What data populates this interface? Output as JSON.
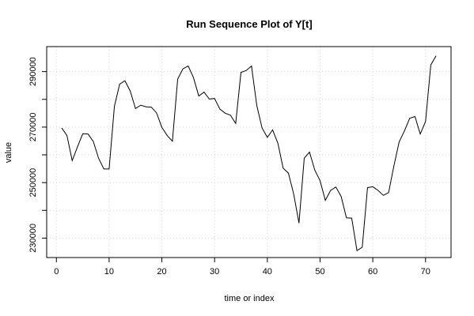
{
  "chart_data": {
    "type": "line",
    "title": "Run Sequence Plot of Y[t]",
    "xlabel": "time or index",
    "ylabel": "value",
    "xlim": [
      -1.84,
      74.84
    ],
    "ylim": [
      223000,
      299000
    ],
    "x_ticks": [
      0,
      10,
      20,
      30,
      40,
      50,
      60,
      70
    ],
    "x_tick_labels": [
      "0",
      "10",
      "20",
      "30",
      "40",
      "50",
      "60",
      "70"
    ],
    "y_ticks": [
      230000,
      240000,
      250000,
      260000,
      270000,
      280000,
      290000
    ],
    "y_tick_labels": [
      "230000",
      "",
      "250000",
      "",
      "270000",
      "",
      "290000"
    ],
    "grid": true,
    "x": [
      1,
      2,
      3,
      4,
      5,
      6,
      7,
      8,
      9,
      10,
      11,
      12,
      13,
      14,
      15,
      16,
      17,
      18,
      19,
      20,
      21,
      22,
      23,
      24,
      25,
      26,
      27,
      28,
      29,
      30,
      31,
      32,
      33,
      34,
      35,
      36,
      37,
      38,
      39,
      40,
      41,
      42,
      43,
      44,
      45,
      46,
      47,
      48,
      49,
      50,
      51,
      52,
      53,
      54,
      55,
      56,
      57,
      58,
      59,
      60,
      61,
      62,
      63,
      64,
      65,
      66,
      67,
      68,
      69,
      70,
      71,
      72
    ],
    "series": [
      {
        "values": [
          269700,
          267000,
          257900,
          262900,
          267600,
          267500,
          264800,
          258800,
          254900,
          254900,
          277500,
          285500,
          286700,
          283000,
          276700,
          277900,
          277300,
          277200,
          275100,
          269900,
          267000,
          264900,
          287300,
          291000,
          292000,
          287800,
          281200,
          282600,
          280100,
          280300,
          276500,
          275000,
          274300,
          271300,
          289700,
          290400,
          292000,
          277800,
          269700,
          266300,
          269000,
          264200,
          255200,
          253400,
          245900,
          235400,
          258800,
          261000,
          254500,
          250700,
          243600,
          247200,
          248400,
          245000,
          237300,
          237200,
          225500,
          226700,
          248200,
          248500,
          247200,
          245400,
          246400,
          256000,
          264700,
          268600,
          273200,
          273800,
          267500,
          272000,
          292400,
          295700
        ]
      }
    ]
  }
}
